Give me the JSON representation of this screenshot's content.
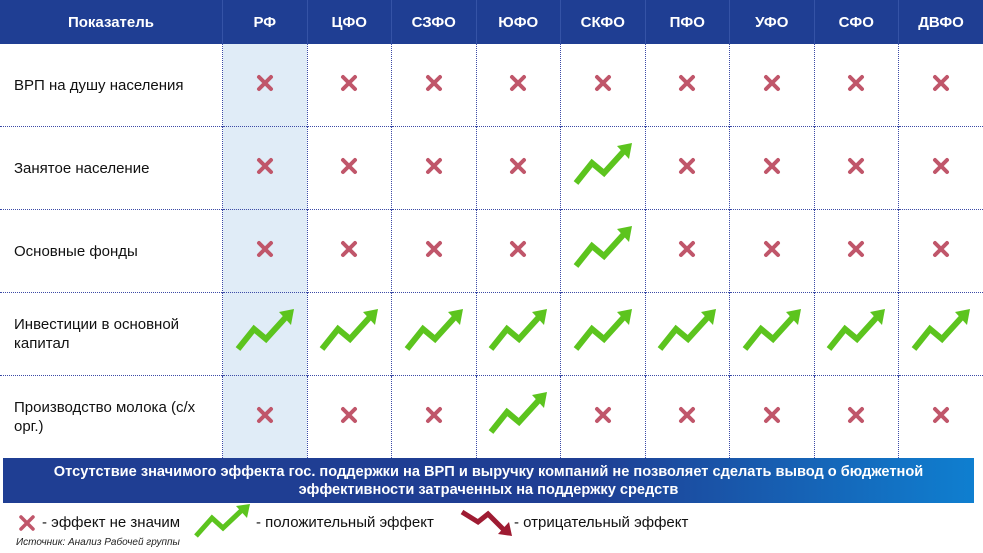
{
  "table": {
    "header": [
      "Показатель",
      "РФ",
      "ЦФО",
      "СЗФО",
      "ЮФО",
      "СКФО",
      "ПФО",
      "УФО",
      "СФО",
      "ДВФО"
    ],
    "rows": [
      {
        "label": "ВРП на душу населения",
        "effects": [
          "x",
          "x",
          "x",
          "x",
          "x",
          "x",
          "x",
          "x",
          "x"
        ]
      },
      {
        "label": "Занятое население",
        "effects": [
          "x",
          "x",
          "x",
          "x",
          "up",
          "x",
          "x",
          "x",
          "x"
        ]
      },
      {
        "label": "Основные фонды",
        "effects": [
          "x",
          "x",
          "x",
          "x",
          "up",
          "x",
          "x",
          "x",
          "x"
        ]
      },
      {
        "label": "Инвестиции в основной капитал",
        "effects": [
          "up",
          "up",
          "up",
          "up",
          "up",
          "up",
          "up",
          "up",
          "up"
        ]
      },
      {
        "label": "Производство молока (с/х орг.)",
        "effects": [
          "x",
          "x",
          "x",
          "up",
          "x",
          "x",
          "x",
          "x",
          "x"
        ]
      }
    ]
  },
  "banner": {
    "text": "Отсутствие значимого эффекта гос. поддержки на ВРП и выручку компаний не позволяет сделать вывод о бюджетной эффективности затраченных на поддержку средств"
  },
  "legend": {
    "not_significant": "- эффект не значим",
    "positive": "- положительный эффект",
    "negative": "- отрицательный эффект"
  },
  "source": "Источник: Анализ Рабочей группы",
  "colors": {
    "header_bg": "#1f3e93",
    "highlight_col": "#e0ecf7",
    "x_mark": "#c0566a",
    "up_arrow": "#5cc41e",
    "down_arrow": "#9e1b32"
  },
  "icons": {
    "x": "cross-icon",
    "up": "up-trend-arrow-icon",
    "down": "down-trend-arrow-icon"
  }
}
